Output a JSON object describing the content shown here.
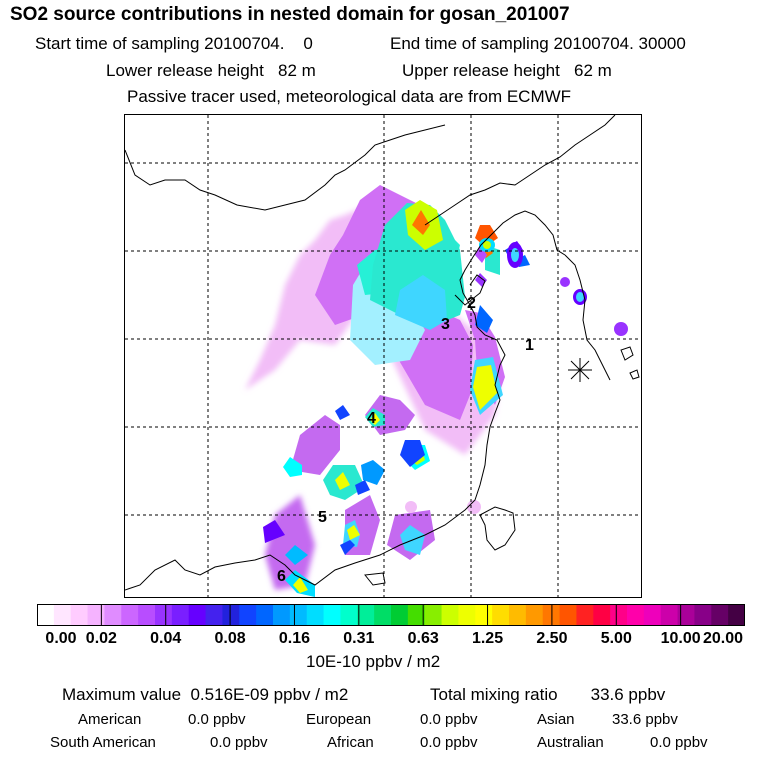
{
  "title": "SO2 source contributions in nested domain for gosan_201007",
  "header": {
    "start_label": "Start time of sampling 20100704.    0",
    "end_label": "End time of sampling 20100704. 30000",
    "lower_label": "Lower release height   82 m",
    "upper_label": "Upper release height   62 m",
    "note": "Passive tracer used, meteorological data are from ECMWF"
  },
  "map": {
    "receptor_marker": "asterisk-marker",
    "source_labels": [
      "1",
      "2",
      "3",
      "4",
      "5",
      "6"
    ]
  },
  "colorbar": {
    "tick_labels": [
      "0.00",
      "0.02",
      "0.04",
      "0.08",
      "0.16",
      "0.31",
      "0.63",
      "1.25",
      "2.50",
      "5.00",
      "10.00",
      "20.00"
    ],
    "colors": [
      "#ffffff",
      "#ffe6ff",
      "#ffccff",
      "#f5b3ff",
      "#e08cff",
      "#cc66ff",
      "#b84dff",
      "#9933ff",
      "#7a1fff",
      "#6600ff",
      "#4422ee",
      "#2222dd",
      "#1144ff",
      "#0066ff",
      "#0099ff",
      "#00bbff",
      "#00ddff",
      "#00ffff",
      "#00ffcc",
      "#00ee99",
      "#00dd66",
      "#00cc33",
      "#44dd00",
      "#88ee00",
      "#ccff00",
      "#eeff00",
      "#ffff00",
      "#ffdd00",
      "#ffbb00",
      "#ff9900",
      "#ff7700",
      "#ff5500",
      "#ff2222",
      "#ff0044",
      "#ff0088",
      "#ff00aa",
      "#ee00bb",
      "#cc00aa",
      "#aa0099",
      "#880088",
      "#660066",
      "#440044"
    ],
    "unit": "10E-10 ppbv / m2"
  },
  "stats": {
    "max_label": "Maximum value  0.516E-09 ppbv / m2",
    "total_label": "Total mixing ratio       33.6 ppbv",
    "american_label": "American",
    "american_value": "0.0 ppbv",
    "european_label": "European",
    "european_value": "0.0 ppbv",
    "asian_label": "Asian",
    "asian_value": "33.6 ppbv",
    "south_american_label": "South American",
    "south_american_value": "0.0 ppbv",
    "african_label": "African",
    "african_value": "0.0 ppbv",
    "australian_label": "Australian",
    "australian_value": "0.0 ppbv"
  }
}
